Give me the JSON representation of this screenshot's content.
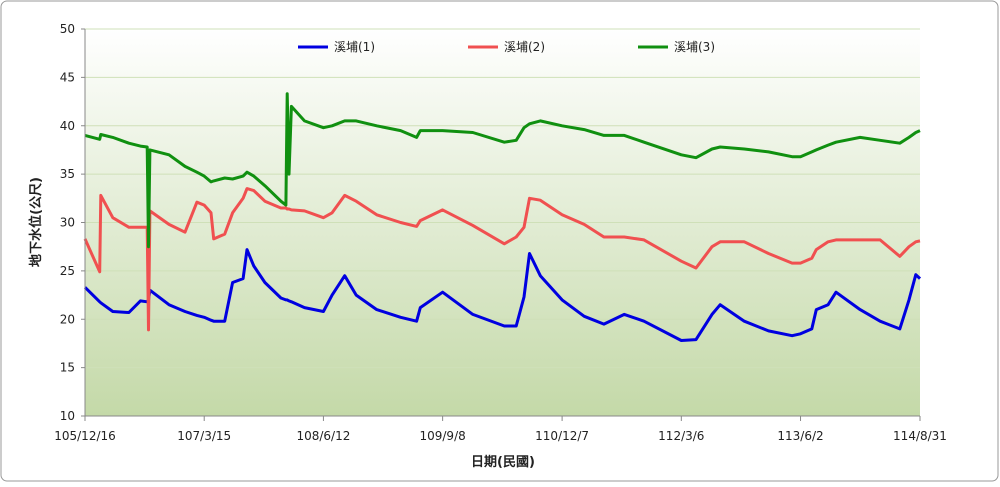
{
  "chart_data": {
    "type": "line",
    "y_label": "地下水位(公尺)",
    "x_label": "日期(民國)",
    "xlim": [
      "105/12/16",
      "114/8/31"
    ],
    "xticks": [
      "105/12/16",
      "107/3/15",
      "108/6/12",
      "109/9/8",
      "110/12/7",
      "112/3/6",
      "113/6/2",
      "114/8/31"
    ],
    "ylim": [
      10,
      50
    ],
    "yticks": [
      10,
      15,
      20,
      25,
      30,
      35,
      40,
      45,
      50
    ],
    "grid": true,
    "x": [
      "105/12/16",
      "106/2/10",
      "106/2/14",
      "106/4/1",
      "106/6/1",
      "106/7/15",
      "106/8/10",
      "106/8/15",
      "106/8/20",
      "106/11/1",
      "107/1/1",
      "107/2/15",
      "107/3/15",
      "107/4/10",
      "107/4/20",
      "107/6/1",
      "107/7/1",
      "107/8/10",
      "107/8/25",
      "107/9/20",
      "107/11/1",
      "108/1/1",
      "108/1/20",
      "108/1/25",
      "108/2/1",
      "108/2/10",
      "108/4/1",
      "108/6/12",
      "108/7/15",
      "108/9/1",
      "108/10/15",
      "109/1/1",
      "109/4/1",
      "109/6/1",
      "109/6/15",
      "109/9/8",
      "110/1/1",
      "110/5/1",
      "110/6/15",
      "110/7/15",
      "110/8/5",
      "110/9/15",
      "110/12/7",
      "111/3/1",
      "111/5/15",
      "111/8/1",
      "111/10/15",
      "112/3/6",
      "112/5/1",
      "112/7/1",
      "112/8/1",
      "112/11/1",
      "113/2/1",
      "113/5/1",
      "113/6/2",
      "113/7/15",
      "113/8/1",
      "113/9/15",
      "113/10/15",
      "114/1/15",
      "114/4/1",
      "114/6/15",
      "114/7/20",
      "114/8/15",
      "114/8/31"
    ],
    "series": [
      {
        "name": "溪埔(1)",
        "color": "#0000e0",
        "values": [
          23.3,
          21.8,
          21.7,
          20.8,
          20.7,
          21.9,
          21.8,
          22.0,
          23.0,
          21.5,
          20.8,
          20.4,
          20.2,
          19.9,
          19.8,
          19.8,
          23.8,
          24.2,
          27.2,
          25.5,
          23.8,
          22.2,
          22.0,
          22.0,
          21.9,
          21.8,
          21.2,
          20.8,
          22.5,
          24.5,
          22.5,
          21.0,
          20.2,
          19.8,
          21.2,
          22.8,
          20.5,
          19.3,
          19.3,
          22.3,
          26.8,
          24.5,
          22.0,
          20.3,
          19.5,
          20.5,
          19.8,
          17.8,
          17.9,
          20.5,
          21.5,
          19.8,
          18.8,
          18.3,
          18.5,
          19.0,
          21.0,
          21.5,
          22.8,
          21.0,
          19.8,
          19.0,
          22.0,
          24.6,
          24.2
        ]
      },
      {
        "name": "溪埔(2)",
        "color": "#f05050",
        "values": [
          28.3,
          24.9,
          32.8,
          30.5,
          29.5,
          29.5,
          29.5,
          18.9,
          31.2,
          29.8,
          29.0,
          32.1,
          31.8,
          31.0,
          28.3,
          28.8,
          31.0,
          32.5,
          33.5,
          33.3,
          32.2,
          31.5,
          31.5,
          31.4,
          31.4,
          31.3,
          31.2,
          30.5,
          31.0,
          32.8,
          32.2,
          30.8,
          30.0,
          29.6,
          30.2,
          31.3,
          29.7,
          27.8,
          28.5,
          29.5,
          32.5,
          32.3,
          30.8,
          29.8,
          28.5,
          28.5,
          28.2,
          26.0,
          25.3,
          27.5,
          28.0,
          28.0,
          26.8,
          25.8,
          25.8,
          26.3,
          27.2,
          28.0,
          28.2,
          28.2,
          28.2,
          26.5,
          27.5,
          28.0,
          28.1
        ]
      },
      {
        "name": "溪埔(3)",
        "color": "#109010",
        "values": [
          39.0,
          38.6,
          39.1,
          38.8,
          38.2,
          37.9,
          37.8,
          27.5,
          37.5,
          37.0,
          35.8,
          35.2,
          34.8,
          34.2,
          34.3,
          34.6,
          34.5,
          34.8,
          35.2,
          34.8,
          33.8,
          32.2,
          31.8,
          43.3,
          35.0,
          42.0,
          40.5,
          39.8,
          40.0,
          40.5,
          40.5,
          40.0,
          39.5,
          38.8,
          39.5,
          39.5,
          39.3,
          38.3,
          38.5,
          39.8,
          40.2,
          40.5,
          40.0,
          39.6,
          39.0,
          39.0,
          38.3,
          37.0,
          36.7,
          37.6,
          37.8,
          37.6,
          37.3,
          36.8,
          36.8,
          37.3,
          37.5,
          38.0,
          38.3,
          38.8,
          38.5,
          38.2,
          38.8,
          39.3,
          39.5
        ]
      }
    ]
  }
}
